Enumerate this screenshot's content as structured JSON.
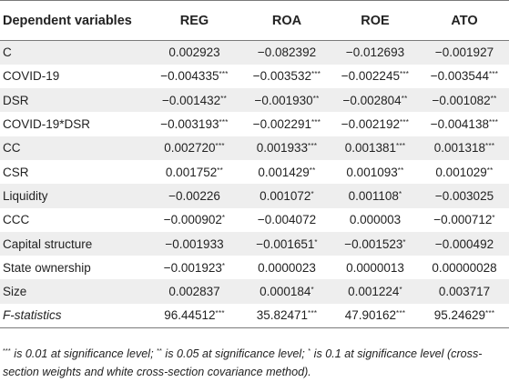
{
  "table": {
    "headers": [
      "Dependent variables",
      "REG",
      "ROA",
      "ROE",
      "ATO"
    ],
    "rows": [
      {
        "label": "C",
        "italic": false,
        "cells": [
          {
            "v": "0.002923",
            "s": ""
          },
          {
            "v": "−0.082392",
            "s": ""
          },
          {
            "v": "−0.012693",
            "s": ""
          },
          {
            "v": "−0.001927",
            "s": ""
          }
        ]
      },
      {
        "label": "COVID-19",
        "italic": false,
        "cells": [
          {
            "v": "−0.004335",
            "s": "***"
          },
          {
            "v": "−0.003532",
            "s": "***"
          },
          {
            "v": "−0.002245",
            "s": "***"
          },
          {
            "v": "−0.003544",
            "s": "***"
          }
        ]
      },
      {
        "label": "DSR",
        "italic": false,
        "cells": [
          {
            "v": "−0.001432",
            "s": "**"
          },
          {
            "v": "−0.001930",
            "s": "**"
          },
          {
            "v": "−0.002804",
            "s": "**"
          },
          {
            "v": "−0.001082",
            "s": "**"
          }
        ]
      },
      {
        "label": "COVID-19*DSR",
        "italic": false,
        "cells": [
          {
            "v": "−0.003193",
            "s": "***"
          },
          {
            "v": "−0.002291",
            "s": "***"
          },
          {
            "v": "−0.002192",
            "s": "***"
          },
          {
            "v": "−0.004138",
            "s": "***"
          }
        ]
      },
      {
        "label": "CC",
        "italic": false,
        "cells": [
          {
            "v": "0.002720",
            "s": "***"
          },
          {
            "v": "0.001933",
            "s": "***"
          },
          {
            "v": "0.001381",
            "s": "***"
          },
          {
            "v": "0.001318",
            "s": "***"
          }
        ]
      },
      {
        "label": "CSR",
        "italic": false,
        "cells": [
          {
            "v": "0.001752",
            "s": "**"
          },
          {
            "v": "0.001429",
            "s": "**"
          },
          {
            "v": "0.001093",
            "s": "**"
          },
          {
            "v": "0.001029",
            "s": "**"
          }
        ]
      },
      {
        "label": "Liquidity",
        "italic": false,
        "cells": [
          {
            "v": "−0.00226",
            "s": ""
          },
          {
            "v": "0.001072",
            "s": "*"
          },
          {
            "v": "0.001108",
            "s": "*"
          },
          {
            "v": "−0.003025",
            "s": ""
          }
        ]
      },
      {
        "label": "CCC",
        "italic": false,
        "cells": [
          {
            "v": "−0.000902",
            "s": "*"
          },
          {
            "v": "−0.004072",
            "s": ""
          },
          {
            "v": "0.000003",
            "s": ""
          },
          {
            "v": "−0.000712",
            "s": "*"
          }
        ]
      },
      {
        "label": "Capital structure",
        "italic": false,
        "cells": [
          {
            "v": "−0.001933",
            "s": ""
          },
          {
            "v": "−0.001651",
            "s": "*"
          },
          {
            "v": "−0.001523",
            "s": "*"
          },
          {
            "v": "−0.000492",
            "s": ""
          }
        ]
      },
      {
        "label": "State ownership",
        "italic": false,
        "cells": [
          {
            "v": "−0.001923",
            "s": "*"
          },
          {
            "v": "0.0000023",
            "s": ""
          },
          {
            "v": "0.0000013",
            "s": ""
          },
          {
            "v": "0.00000028",
            "s": ""
          }
        ]
      },
      {
        "label": "Size",
        "italic": false,
        "cells": [
          {
            "v": "0.002837",
            "s": ""
          },
          {
            "v": "0.000184",
            "s": "*"
          },
          {
            "v": "0.001224",
            "s": "*"
          },
          {
            "v": "0.003717",
            "s": ""
          }
        ]
      },
      {
        "label": "F-statistics",
        "italic": true,
        "cells": [
          {
            "v": "96.44512",
            "s": "***"
          },
          {
            "v": "35.82471",
            "s": "***"
          },
          {
            "v": "47.90162",
            "s": "***"
          },
          {
            "v": "95.24629",
            "s": "***"
          }
        ]
      }
    ]
  },
  "footnote": {
    "parts": [
      {
        "sup": "***",
        "text": " is 0.01 at significance level; "
      },
      {
        "sup": "**",
        "text": " is 0.05 at significance level; "
      },
      {
        "sup": "*",
        "text": " is 0.1 at significance level (cross-section weights and white cross-section covariance method)."
      }
    ]
  }
}
